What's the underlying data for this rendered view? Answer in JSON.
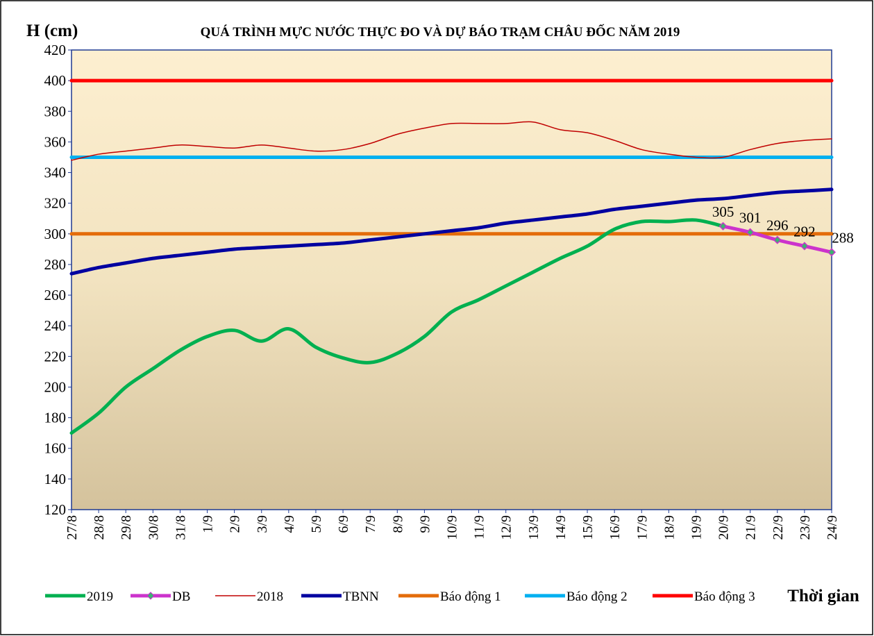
{
  "chart_data": {
    "type": "line",
    "title": "QUÁ TRÌNH MỰC NƯỚC THỰC ĐO VÀ DỰ BÁO TRẠM CHÂU ĐỐC NĂM  2019",
    "y_label": "H (cm)",
    "x_label": "Thời gian",
    "categories": [
      "27/8",
      "28/8",
      "29/8",
      "30/8",
      "31/8",
      "1/9",
      "2/9",
      "3/9",
      "4/9",
      "5/9",
      "6/9",
      "7/9",
      "8/9",
      "9/9",
      "10/9",
      "11/9",
      "12/9",
      "13/9",
      "14/9",
      "15/9",
      "16/9",
      "17/9",
      "18/9",
      "19/9",
      "20/9",
      "21/9",
      "22/9",
      "23/9",
      "24/9"
    ],
    "ylim": [
      120,
      420
    ],
    "yticks": [
      120,
      140,
      160,
      180,
      200,
      220,
      240,
      260,
      280,
      300,
      320,
      340,
      360,
      380,
      400,
      420
    ],
    "series": [
      {
        "name": "2019",
        "color": "#00b050",
        "width": 5,
        "values": [
          170,
          183,
          200,
          212,
          224,
          233,
          237,
          230,
          238,
          226,
          219,
          216,
          222,
          233,
          249,
          257,
          266,
          275,
          284,
          292,
          303,
          308,
          308,
          309,
          305,
          null,
          null,
          null,
          null
        ]
      },
      {
        "name": "DB",
        "color": "#cc33cc",
        "width": 5,
        "marker": "diamond",
        "marker_color": "#3cb371",
        "show_labels": true,
        "values": [
          null,
          null,
          null,
          null,
          null,
          null,
          null,
          null,
          null,
          null,
          null,
          null,
          null,
          null,
          null,
          null,
          null,
          null,
          null,
          null,
          null,
          null,
          null,
          null,
          305,
          301,
          296,
          292,
          288
        ]
      },
      {
        "name": "2018",
        "color": "#c00000",
        "width": 1.5,
        "values": [
          348,
          352,
          354,
          356,
          358,
          357,
          356,
          358,
          356,
          354,
          355,
          359,
          365,
          369,
          372,
          372,
          372,
          373,
          368,
          366,
          361,
          355,
          352,
          350,
          350,
          355,
          359,
          361,
          362
        ]
      },
      {
        "name": "TBNN",
        "color": "#0000a0",
        "width": 5,
        "values": [
          274,
          278,
          281,
          284,
          286,
          288,
          290,
          291,
          292,
          293,
          294,
          296,
          298,
          300,
          302,
          304,
          307,
          309,
          311,
          313,
          316,
          318,
          320,
          322,
          323,
          325,
          327,
          328,
          329
        ]
      },
      {
        "name": "Báo động 1",
        "color": "#e46c0a",
        "width": 5,
        "values": [
          300,
          300,
          300,
          300,
          300,
          300,
          300,
          300,
          300,
          300,
          300,
          300,
          300,
          300,
          300,
          300,
          300,
          300,
          300,
          300,
          300,
          300,
          300,
          300,
          300,
          300,
          300,
          300,
          300
        ]
      },
      {
        "name": "Báo động 2",
        "color": "#00b0f0",
        "width": 5,
        "values": [
          350,
          350,
          350,
          350,
          350,
          350,
          350,
          350,
          350,
          350,
          350,
          350,
          350,
          350,
          350,
          350,
          350,
          350,
          350,
          350,
          350,
          350,
          350,
          350,
          350,
          350,
          350,
          350,
          350
        ]
      },
      {
        "name": "Báo động 3",
        "color": "#ff0000",
        "width": 5,
        "values": [
          400,
          400,
          400,
          400,
          400,
          400,
          400,
          400,
          400,
          400,
          400,
          400,
          400,
          400,
          400,
          400,
          400,
          400,
          400,
          400,
          400,
          400,
          400,
          400,
          400,
          400,
          400,
          400,
          400
        ]
      }
    ]
  }
}
